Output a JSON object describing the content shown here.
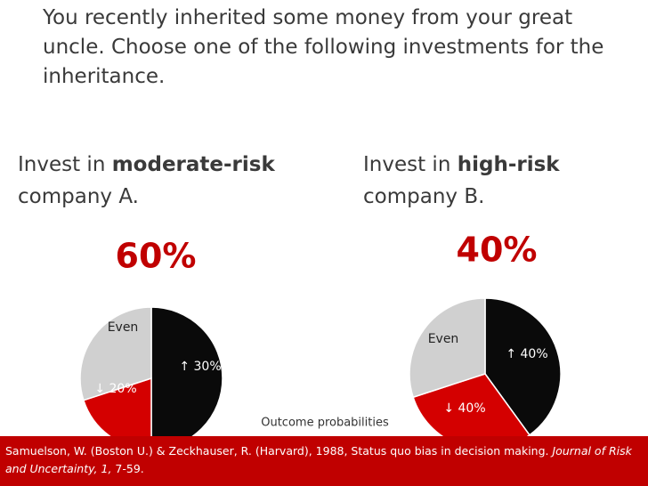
{
  "question": "You recently inherited some money from your great uncle.  Choose one of the following investments for the inheritance.",
  "chart_data": [
    {
      "type": "pie",
      "title": {
        "prefix": "Invest in",
        "emphasis": "moderate-risk",
        "suffix": "company A."
      },
      "result": "60%",
      "categories": [
        "↑ 30%",
        "↓ 20%",
        "Even"
      ],
      "values": [
        50,
        20,
        30
      ],
      "colors": [
        "#0a0a0a",
        "#d40000",
        "#d0d0d0"
      ]
    },
    {
      "type": "pie",
      "title": {
        "prefix": "Invest in",
        "emphasis": "high-risk",
        "suffix": "company B."
      },
      "result": "40%",
      "categories": [
        "↑ 40%",
        "↓ 40%",
        "Even"
      ],
      "values": [
        40,
        30,
        30
      ],
      "colors": [
        "#0a0a0a",
        "#d40000",
        "#d0d0d0"
      ]
    }
  ],
  "caption": "Outcome probabilities",
  "citation": {
    "text": "Samuelson, W. (Boston U.) & Zeckhauser, R. (Harvard), 1988, Status quo bias in decision making.",
    "journal": "Journal of Risk and Uncertainty, 1,",
    "pages": "7-59."
  }
}
